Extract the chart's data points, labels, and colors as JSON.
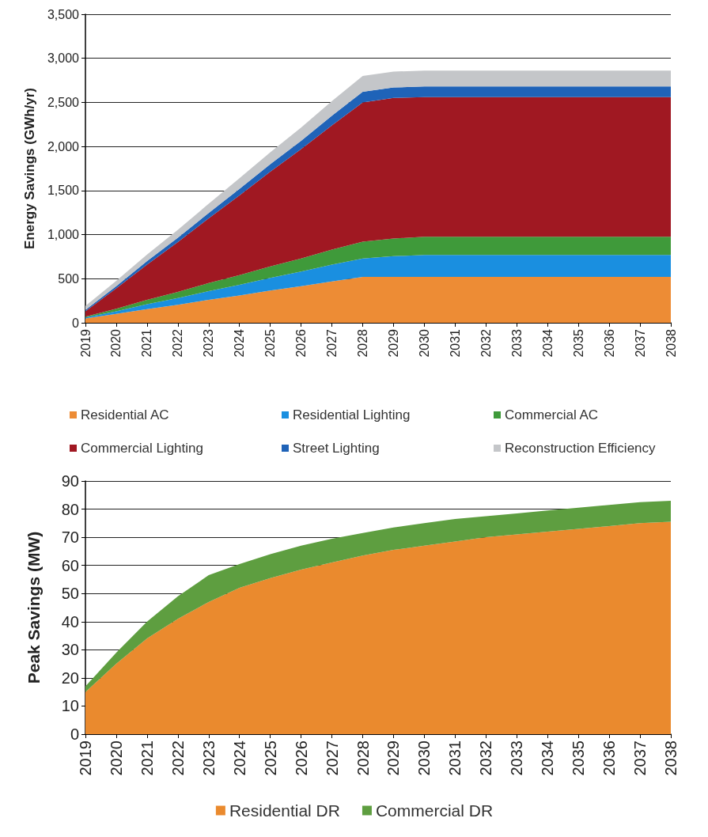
{
  "chart_data": [
    {
      "type": "area",
      "stacked": true,
      "ylabel": "Energy Savings (GWh/yr)",
      "categories": [
        "2019",
        "2020",
        "2021",
        "2022",
        "2023",
        "2024",
        "2025",
        "2026",
        "2027",
        "2028",
        "2029",
        "2030",
        "2031",
        "2032",
        "2033",
        "2034",
        "2035",
        "2036",
        "2037",
        "2038"
      ],
      "series": [
        {
          "name": "Residential AC",
          "color": "#ed8c35",
          "values": [
            50,
            100,
            155,
            205,
            260,
            310,
            365,
            415,
            470,
            520,
            520,
            520,
            520,
            520,
            520,
            520,
            520,
            520,
            520,
            520
          ]
        },
        {
          "name": "Residential Lighting",
          "color": "#1a8fe0",
          "values": [
            10,
            30,
            55,
            75,
            100,
            120,
            145,
            165,
            190,
            210,
            235,
            250,
            250,
            250,
            250,
            250,
            250,
            250,
            250,
            250
          ]
        },
        {
          "name": "Commercial AC",
          "color": "#3f9a3a",
          "values": [
            10,
            30,
            50,
            70,
            90,
            110,
            130,
            150,
            170,
            190,
            200,
            205,
            205,
            205,
            205,
            205,
            205,
            205,
            205,
            205
          ]
        },
        {
          "name": "Commercial Lighting",
          "color": "#a01822",
          "values": [
            60,
            230,
            400,
            565,
            735,
            905,
            1075,
            1240,
            1410,
            1580,
            1595,
            1585,
            1585,
            1585,
            1585,
            1585,
            1585,
            1585,
            1585,
            1585
          ]
        },
        {
          "name": "Street Lighting",
          "color": "#1f63b8",
          "values": [
            15,
            25,
            40,
            50,
            60,
            75,
            85,
            95,
            110,
            120,
            120,
            120,
            120,
            120,
            120,
            120,
            120,
            120,
            120,
            120
          ]
        },
        {
          "name": "Reconstruction Efficiency",
          "color": "#c4c6c9",
          "values": [
            45,
            60,
            75,
            90,
            105,
            120,
            135,
            150,
            165,
            180,
            180,
            180,
            180,
            180,
            180,
            180,
            180,
            180,
            180,
            180
          ]
        }
      ],
      "ylim": [
        0,
        3500
      ],
      "yticks": [
        {
          "value": 0,
          "label": "0"
        },
        {
          "value": 500,
          "label": "500"
        },
        {
          "value": 1000,
          "label": "1,000"
        },
        {
          "value": 1500,
          "label": "1,500"
        },
        {
          "value": 2000,
          "label": "2,000"
        },
        {
          "value": 2500,
          "label": "2,500"
        },
        {
          "value": 3000,
          "label": "3,000"
        },
        {
          "value": 3500,
          "label": "3,500"
        }
      ],
      "grid": "y",
      "legend": "bottom"
    },
    {
      "type": "area",
      "stacked": true,
      "ylabel": "Peak Savings (MW)",
      "categories": [
        "2019",
        "2020",
        "2021",
        "2022",
        "2023",
        "2024",
        "2025",
        "2026",
        "2027",
        "2028",
        "2029",
        "2030",
        "2031",
        "2032",
        "2033",
        "2034",
        "2035",
        "2036",
        "2037",
        "2038"
      ],
      "series": [
        {
          "name": "Residential DR",
          "color": "#ea8a2e",
          "values": [
            15,
            25,
            34,
            41,
            47,
            52,
            55.5,
            58.5,
            61,
            63.5,
            65.5,
            67,
            68.5,
            70,
            71,
            72,
            73,
            74,
            75,
            75.5
          ]
        },
        {
          "name": "Commercial DR",
          "color": "#5e9e40",
          "values": [
            2,
            4,
            6,
            8,
            9.5,
            8.5,
            8.5,
            8.5,
            8.5,
            8,
            8,
            8,
            8,
            7.5,
            7.5,
            7.5,
            7.5,
            7.5,
            7.5,
            7.5
          ]
        }
      ],
      "ylim": [
        0,
        90
      ],
      "yticks": [
        0,
        10,
        20,
        30,
        40,
        50,
        60,
        70,
        80,
        90
      ],
      "grid": "y",
      "legend": "bottom"
    }
  ]
}
